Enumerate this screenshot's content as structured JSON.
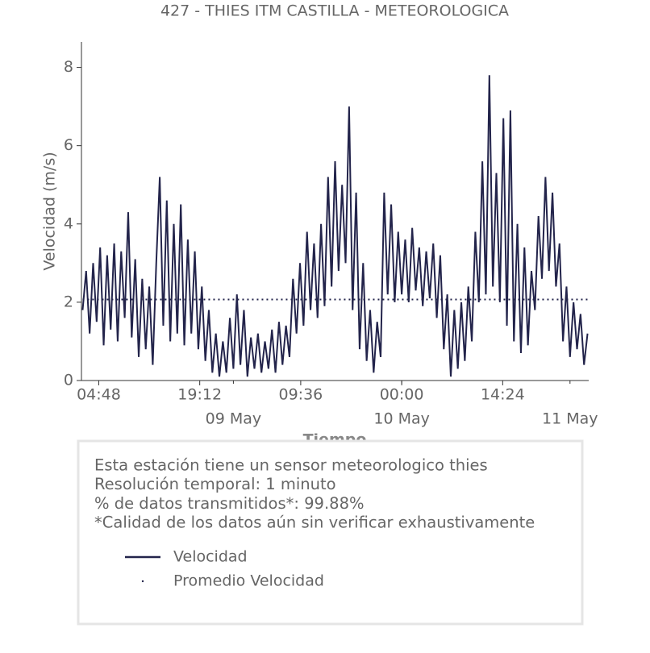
{
  "chart_data": {
    "type": "line",
    "title": "427 - THIES ITM CASTILLA - METEOROLOGICA",
    "xlabel": "Tiempo",
    "ylabel": "Velocidad (m/s)",
    "x": [
      "08 May 02:30",
      "08 May 03:00",
      "08 May 03:30",
      "08 May 04:00",
      "08 May 04:30",
      "08 May 05:00",
      "08 May 05:30",
      "08 May 06:00",
      "08 May 06:30",
      "08 May 07:00",
      "08 May 07:30",
      "08 May 08:00",
      "08 May 08:30",
      "08 May 09:00",
      "08 May 09:30",
      "08 May 10:00",
      "08 May 10:30",
      "08 May 11:00",
      "08 May 11:30",
      "08 May 12:00",
      "08 May 12:30",
      "08 May 13:00",
      "08 May 13:30",
      "08 May 14:00",
      "08 May 14:30",
      "08 May 15:00",
      "08 May 15:30",
      "08 May 16:00",
      "08 May 16:30",
      "08 May 17:00",
      "08 May 17:30",
      "08 May 18:00",
      "08 May 18:30",
      "08 May 19:00",
      "08 May 19:30",
      "08 May 20:00",
      "08 May 20:30",
      "08 May 21:00",
      "08 May 21:30",
      "08 May 22:00",
      "08 May 22:30",
      "08 May 23:00",
      "08 May 23:30",
      "09 May 00:00",
      "09 May 00:30",
      "09 May 01:00",
      "09 May 01:30",
      "09 May 02:00",
      "09 May 02:30",
      "09 May 03:00",
      "09 May 03:30",
      "09 May 04:00",
      "09 May 04:30",
      "09 May 05:00",
      "09 May 05:30",
      "09 May 06:00",
      "09 May 06:30",
      "09 May 07:00",
      "09 May 07:30",
      "09 May 08:00",
      "09 May 08:30",
      "09 May 09:00",
      "09 May 09:30",
      "09 May 10:00",
      "09 May 10:30",
      "09 May 11:00",
      "09 May 11:30",
      "09 May 12:00",
      "09 May 12:30",
      "09 May 13:00",
      "09 May 13:30",
      "09 May 14:00",
      "09 May 14:30",
      "09 May 15:00",
      "09 May 15:30",
      "09 May 16:00",
      "09 May 16:30",
      "09 May 17:00",
      "09 May 17:30",
      "09 May 18:00",
      "09 May 18:30",
      "09 May 19:00",
      "09 May 19:30",
      "09 May 20:00",
      "09 May 20:30",
      "09 May 21:00",
      "09 May 21:30",
      "09 May 22:00",
      "09 May 22:30",
      "09 May 23:00",
      "09 May 23:30",
      "10 May 00:00",
      "10 May 00:30",
      "10 May 01:00",
      "10 May 01:30",
      "10 May 02:00",
      "10 May 02:30",
      "10 May 03:00",
      "10 May 03:30",
      "10 May 04:00",
      "10 May 04:30",
      "10 May 05:00",
      "10 May 05:30",
      "10 May 06:00",
      "10 May 06:30",
      "10 May 07:00",
      "10 May 07:30",
      "10 May 08:00",
      "10 May 08:30",
      "10 May 09:00",
      "10 May 09:30",
      "10 May 10:00",
      "10 May 10:30",
      "10 May 11:00",
      "10 May 11:30",
      "10 May 12:00",
      "10 May 12:30",
      "10 May 13:00",
      "10 May 13:30",
      "10 May 14:00",
      "10 May 14:30",
      "10 May 15:00",
      "10 May 15:30",
      "10 May 16:00",
      "10 May 16:30",
      "10 May 17:00",
      "10 May 17:30",
      "10 May 18:00",
      "10 May 18:30",
      "10 May 19:00",
      "10 May 19:30",
      "10 May 20:00",
      "10 May 20:30",
      "10 May 21:00",
      "10 May 21:30",
      "10 May 22:00",
      "10 May 22:30",
      "10 May 23:00",
      "10 May 23:30",
      "11 May 00:00",
      "11 May 00:30",
      "11 May 01:00",
      "11 May 01:30",
      "11 May 02:00",
      "11 May 02:30"
    ],
    "series": [
      {
        "name": "Velocidad",
        "color": "#23244b",
        "values": [
          1.8,
          2.8,
          1.2,
          3.0,
          1.5,
          3.4,
          0.9,
          3.2,
          1.3,
          3.5,
          1.0,
          3.3,
          1.6,
          4.3,
          1.1,
          3.1,
          0.6,
          2.6,
          0.8,
          2.4,
          0.4,
          3.0,
          5.2,
          1.4,
          4.6,
          1.0,
          4.0,
          1.2,
          4.5,
          0.9,
          3.6,
          1.2,
          3.3,
          0.8,
          2.4,
          0.5,
          1.8,
          0.2,
          1.2,
          0.1,
          1.0,
          0.2,
          1.6,
          0.3,
          2.2,
          0.4,
          1.8,
          0.1,
          1.1,
          0.3,
          1.2,
          0.2,
          1.0,
          0.3,
          1.3,
          0.2,
          1.5,
          0.4,
          1.4,
          0.6,
          2.6,
          1.2,
          3.0,
          1.4,
          3.8,
          1.8,
          3.5,
          1.6,
          4.0,
          1.9,
          5.2,
          2.4,
          5.6,
          2.8,
          5.0,
          3.0,
          7.0,
          1.8,
          4.8,
          0.8,
          3.0,
          0.5,
          1.8,
          0.2,
          1.5,
          0.6,
          4.8,
          2.2,
          4.5,
          2.0,
          3.8,
          2.2,
          3.6,
          2.0,
          3.9,
          2.3,
          3.4,
          1.9,
          3.3,
          2.1,
          3.5,
          1.6,
          3.2,
          0.8,
          2.2,
          0.1,
          1.8,
          0.3,
          2.0,
          0.5,
          2.4,
          1.0,
          3.8,
          2.0,
          5.6,
          2.2,
          7.8,
          2.4,
          5.3,
          2.0,
          6.7,
          1.4,
          6.9,
          1.0,
          4.0,
          0.7,
          3.4,
          0.9,
          2.8,
          1.8,
          4.2,
          2.6,
          5.2,
          2.8,
          4.8,
          2.4,
          3.5,
          1.0,
          2.4,
          0.6,
          2.0,
          0.8,
          1.7,
          0.4,
          1.2
        ]
      },
      {
        "name": "Promedio Velocidad",
        "color": "#23244b",
        "x": [
          "08 May 02:30",
          "11 May 02:30"
        ],
        "values": [
          2.07,
          2.07
        ]
      }
    ],
    "xlim": [
      "08 May 02:20",
      "11 May 02:40"
    ],
    "ylim": [
      0,
      8.65
    ],
    "yticks": [
      0,
      2,
      4,
      6,
      8
    ],
    "xticks": [
      {
        "value": "08 May 04:48",
        "label": "04:48"
      },
      {
        "value": "08 May 19:12",
        "label": "19:12"
      },
      {
        "value": "09 May 09:36",
        "label": "09:36"
      },
      {
        "value": "10 May 00:00",
        "label": "00:00"
      },
      {
        "value": "10 May 14:24",
        "label": "14:24"
      }
    ],
    "xticks_minor": [
      {
        "value": "09 May 00:00",
        "label": "09 May"
      },
      {
        "value": "10 May 00:00",
        "label": "10 May"
      },
      {
        "value": "11 May 00:00",
        "label": "11 May"
      }
    ],
    "notes": [
      "Esta estación tiene un sensor meteorologico thies",
      "Resolución temporal: 1 minuto",
      "% de datos transmitidos*: 99.88%",
      "*Calidad de los datos aún sin verificar exhaustivamente"
    ]
  }
}
